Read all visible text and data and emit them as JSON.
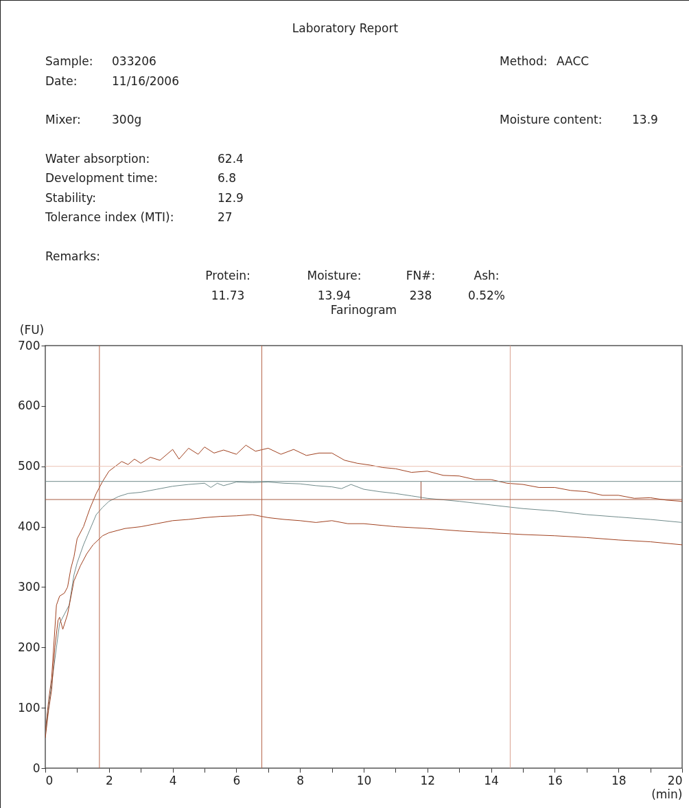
{
  "chart_data": {
    "type": "line",
    "title": "Laboratory Report",
    "subtitle": "Farinogram",
    "xlabel": "(min)",
    "ylabel": "(FU)",
    "annotations": [
      "Sample:",
      "033206",
      "Method:",
      "AACC",
      "Date:",
      "11/16/2006",
      "Mixer:",
      "300g",
      "Moisture content:",
      "13.9",
      "Water absorption:",
      "62.4",
      "Development time:",
      "6.8",
      "Stability:",
      "12.9",
      "Tolerance index (MTI):",
      "27",
      "Remarks:",
      "Protein:",
      "11.73",
      "Moisture:",
      "13.94",
      "FN#:",
      "238",
      "Ash:",
      "0.52%"
    ],
    "xlim": [
      0,
      20
    ],
    "ylim": [
      0,
      700
    ],
    "xticks": [
      0,
      {
        "value": 1,
        "label": null
      },
      2,
      {
        "value": 3,
        "label": null
      },
      4,
      {
        "value": 5,
        "label": null
      },
      6,
      {
        "value": 7,
        "label": null
      },
      8,
      {
        "value": 9,
        "label": null
      },
      10,
      {
        "value": 11,
        "label": null
      },
      12,
      {
        "value": 13,
        "label": null
      },
      14,
      {
        "value": 15,
        "label": null
      },
      16,
      {
        "value": 17,
        "label": null
      },
      18,
      {
        "value": 19,
        "label": null
      },
      20
    ],
    "yticks": [
      0,
      100,
      200,
      300,
      400,
      500,
      600,
      700
    ],
    "series": [
      {
        "color": "#a0401e",
        "x": [
          0,
          0.1,
          0.2,
          0.3,
          0.35,
          0.45,
          0.6,
          0.7,
          0.8,
          0.9,
          1.0,
          1.2,
          1.4,
          1.6,
          1.8,
          2.0,
          2.2,
          2.4,
          2.6,
          2.8,
          3.0,
          3.3,
          3.6,
          4.0,
          4.2,
          4.5,
          4.8,
          5.0,
          5.3,
          5.6,
          6.0,
          6.3,
          6.6,
          7.0,
          7.4,
          7.8,
          8.2,
          8.6,
          9.0,
          9.4,
          9.8,
          10.2,
          10.6,
          11.0,
          11.5,
          12.0,
          12.5,
          13.0,
          13.5,
          14.0,
          14.5,
          15.0,
          15.5,
          16.0,
          16.5,
          17.0,
          17.5,
          18.0,
          18.5,
          19.0,
          19.5,
          20
        ],
        "values": [
          60,
          110,
          150,
          230,
          270,
          285,
          290,
          300,
          330,
          350,
          380,
          400,
          430,
          455,
          475,
          492,
          500,
          508,
          503,
          512,
          505,
          515,
          510,
          528,
          512,
          530,
          520,
          532,
          522,
          527,
          520,
          535,
          525,
          530,
          520,
          528,
          518,
          522,
          522,
          510,
          505,
          502,
          498,
          496,
          490,
          492,
          485,
          484,
          478,
          478,
          472,
          470,
          465,
          465,
          460,
          458,
          452,
          452,
          447,
          448,
          444,
          442
        ]
      },
      {
        "color": "#6f8a8a",
        "x": [
          0,
          0.1,
          0.2,
          0.3,
          0.45,
          0.6,
          0.75,
          0.9,
          1.0,
          1.2,
          1.4,
          1.6,
          1.8,
          2.0,
          2.3,
          2.6,
          3.0,
          3.5,
          4.0,
          4.5,
          5.0,
          5.2,
          5.4,
          5.6,
          6.0,
          6.5,
          7.0,
          7.5,
          8.0,
          8.5,
          9.0,
          9.3,
          9.6,
          10.0,
          10.5,
          11.0,
          11.5,
          12.0,
          13.0,
          14.0,
          15.0,
          16.0,
          17.0,
          18.0,
          19.0,
          20
        ],
        "values": [
          55,
          100,
          140,
          180,
          240,
          255,
          270,
          320,
          340,
          370,
          395,
          420,
          432,
          442,
          450,
          455,
          457,
          462,
          467,
          470,
          472,
          465,
          472,
          468,
          474,
          473,
          474,
          472,
          471,
          468,
          466,
          463,
          470,
          462,
          458,
          455,
          451,
          447,
          442,
          436,
          430,
          426,
          420,
          416,
          412,
          407
        ]
      },
      {
        "color": "#a0401e",
        "x": [
          0,
          0.1,
          0.2,
          0.3,
          0.4,
          0.45,
          0.55,
          0.7,
          0.9,
          1.1,
          1.3,
          1.5,
          1.8,
          2.0,
          2.5,
          3.0,
          3.5,
          4.0,
          4.5,
          5.0,
          5.5,
          6.0,
          6.5,
          7.0,
          7.5,
          8.0,
          8.5,
          9.0,
          9.5,
          10.0,
          11.0,
          12.0,
          13.0,
          14.0,
          15.0,
          16.0,
          17.0,
          18.0,
          19.0,
          20
        ],
        "values": [
          50,
          95,
          130,
          200,
          245,
          250,
          230,
          255,
          310,
          335,
          355,
          370,
          385,
          390,
          397,
          400,
          405,
          410,
          412,
          415,
          417,
          418,
          420,
          415,
          412,
          410,
          407,
          410,
          405,
          405,
          400,
          397,
          393,
          390,
          387,
          385,
          382,
          378,
          375,
          370
        ]
      },
      {
        "color": "#9b4a33",
        "x": [
          11.8,
          11.8
        ],
        "values": [
          445,
          475
        ]
      }
    ],
    "ref_lines": [
      {
        "axis": "x",
        "value": 1.7,
        "color": "#b5654a"
      },
      {
        "axis": "x",
        "value": 6.8,
        "color": "#b5654a"
      },
      {
        "axis": "x",
        "value": 14.6,
        "color": "#d9a190"
      },
      {
        "axis": "y",
        "value": 500,
        "color": "#ebc2b4"
      },
      {
        "axis": "y",
        "value": 475,
        "color": "#6f8a8a"
      },
      {
        "axis": "y",
        "value": 445,
        "color": "#a85a40"
      }
    ]
  }
}
